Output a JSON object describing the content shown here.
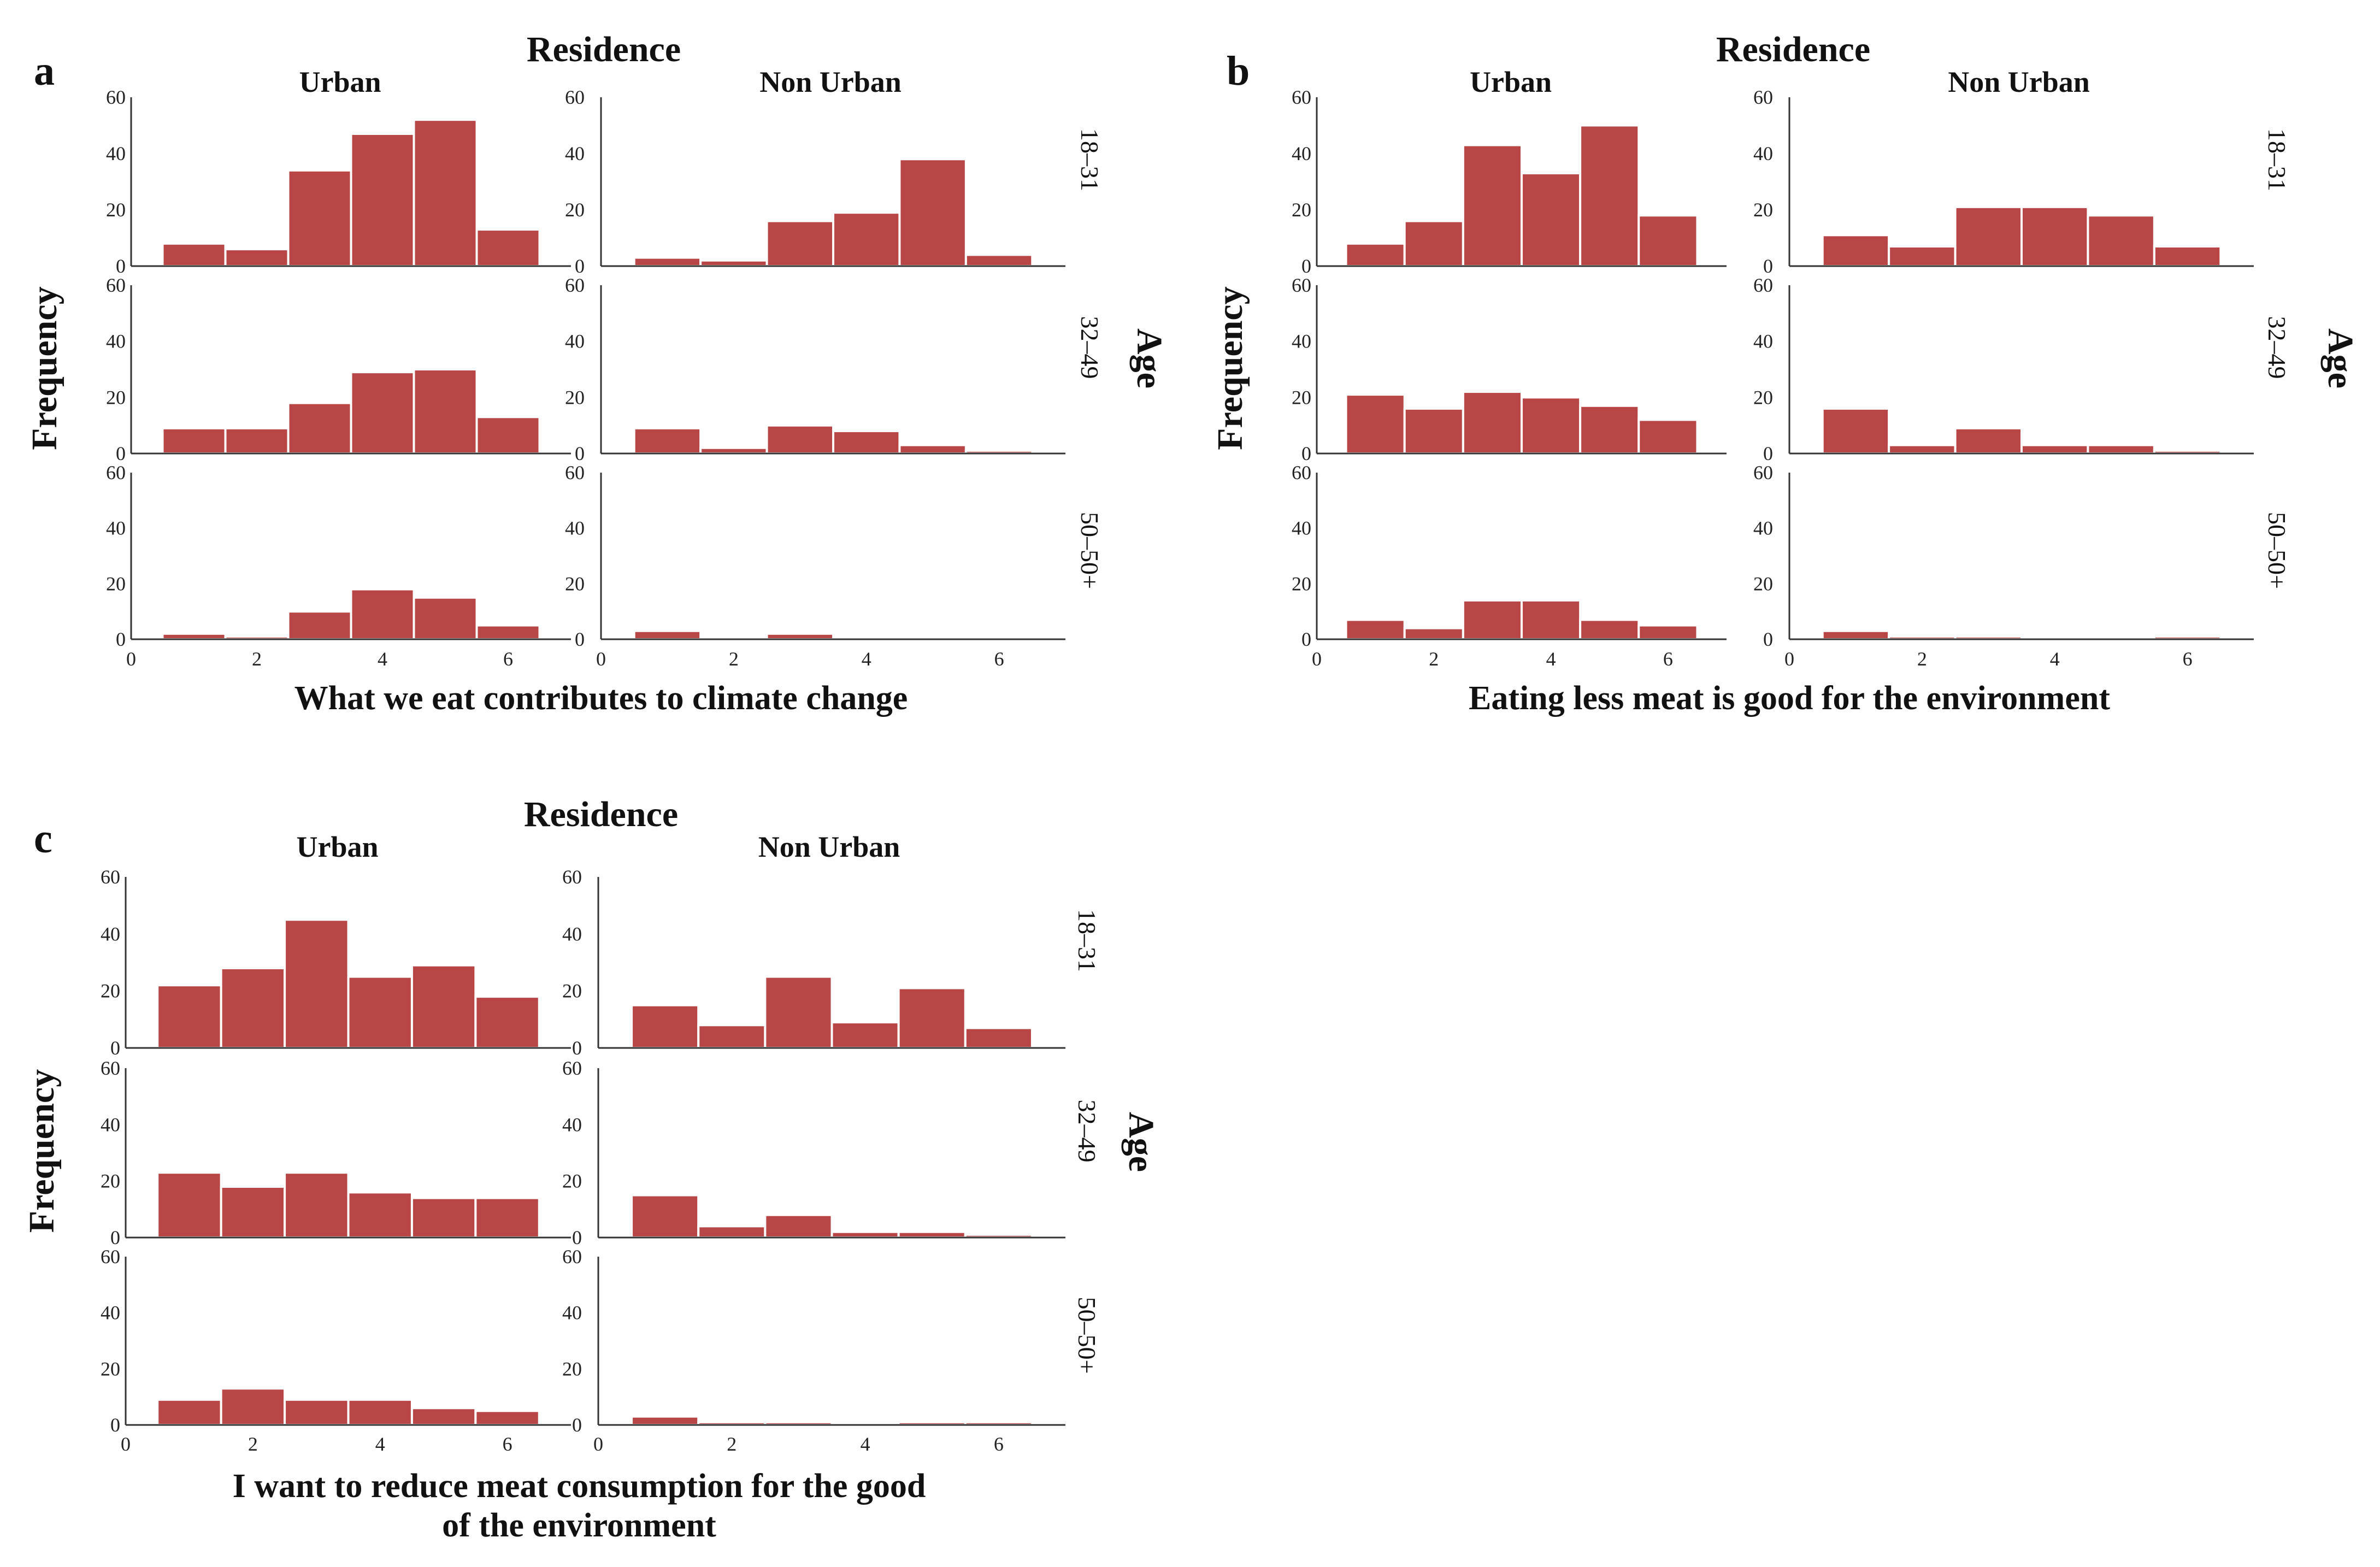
{
  "chart_data": [
    {
      "type": "bar",
      "panel": "a",
      "title": "Residence",
      "columns": [
        "Urban",
        "Non Urban"
      ],
      "row_title": "Age",
      "rows": [
        "18–31",
        "32–49",
        "50–50+"
      ],
      "ylabel": "Frequency",
      "xlabel": [
        "What we eat contributes to climate change"
      ],
      "x_centers": [
        1,
        2,
        3,
        4,
        5,
        6
      ],
      "xlim": [
        0,
        7
      ],
      "ylim": [
        0,
        60
      ],
      "x_ticks": [
        0,
        2,
        4,
        6
      ],
      "y_ticks": [
        0,
        20,
        40,
        60
      ],
      "bar_color": "#b84646",
      "values": [
        [
          [
            8,
            6,
            34,
            47,
            52,
            13
          ],
          [
            3,
            2,
            16,
            19,
            38,
            4
          ]
        ],
        [
          [
            9,
            9,
            18,
            29,
            30,
            13
          ],
          [
            9,
            2,
            10,
            8,
            3,
            1
          ]
        ],
        [
          [
            2,
            1,
            10,
            18,
            15,
            5
          ],
          [
            3,
            0,
            2,
            0,
            0,
            0
          ]
        ]
      ]
    },
    {
      "type": "bar",
      "panel": "b",
      "title": "Residence",
      "columns": [
        "Urban",
        "Non Urban"
      ],
      "row_title": "Age",
      "rows": [
        "18–31",
        "32–49",
        "50–50+"
      ],
      "ylabel": "Frequency",
      "xlabel": [
        "Eating less meat is good for the environment"
      ],
      "x_centers": [
        1,
        2,
        3,
        4,
        5,
        6
      ],
      "xlim": [
        0,
        7
      ],
      "ylim": [
        0,
        60
      ],
      "x_ticks": [
        0,
        2,
        4,
        6
      ],
      "y_ticks": [
        0,
        20,
        40,
        60
      ],
      "bar_color": "#b84646",
      "values": [
        [
          [
            8,
            16,
            43,
            33,
            50,
            18
          ],
          [
            11,
            7,
            21,
            21,
            18,
            7
          ]
        ],
        [
          [
            21,
            16,
            22,
            20,
            17,
            12
          ],
          [
            16,
            3,
            9,
            3,
            3,
            1
          ]
        ],
        [
          [
            7,
            4,
            14,
            14,
            7,
            5
          ],
          [
            3,
            1,
            1,
            0,
            0,
            1
          ]
        ]
      ]
    },
    {
      "type": "bar",
      "panel": "c",
      "title": "Residence",
      "columns": [
        "Urban",
        "Non Urban"
      ],
      "row_title": "Age",
      "rows": [
        "18–31",
        "32–49",
        "50–50+"
      ],
      "ylabel": "Frequency",
      "xlabel": [
        "I want to reduce meat consumption for the good",
        "of the environment"
      ],
      "x_centers": [
        1,
        2,
        3,
        4,
        5,
        6
      ],
      "xlim": [
        0,
        7
      ],
      "ylim": [
        0,
        60
      ],
      "x_ticks": [
        0,
        2,
        4,
        6
      ],
      "y_ticks": [
        0,
        20,
        40,
        60
      ],
      "bar_color": "#b84646",
      "values": [
        [
          [
            22,
            28,
            45,
            25,
            29,
            18
          ],
          [
            15,
            8,
            25,
            9,
            21,
            7
          ]
        ],
        [
          [
            23,
            18,
            23,
            16,
            14,
            14
          ],
          [
            15,
            4,
            8,
            2,
            2,
            1
          ]
        ],
        [
          [
            9,
            13,
            9,
            9,
            6,
            5
          ],
          [
            3,
            1,
            1,
            0,
            1,
            1
          ]
        ]
      ]
    }
  ]
}
